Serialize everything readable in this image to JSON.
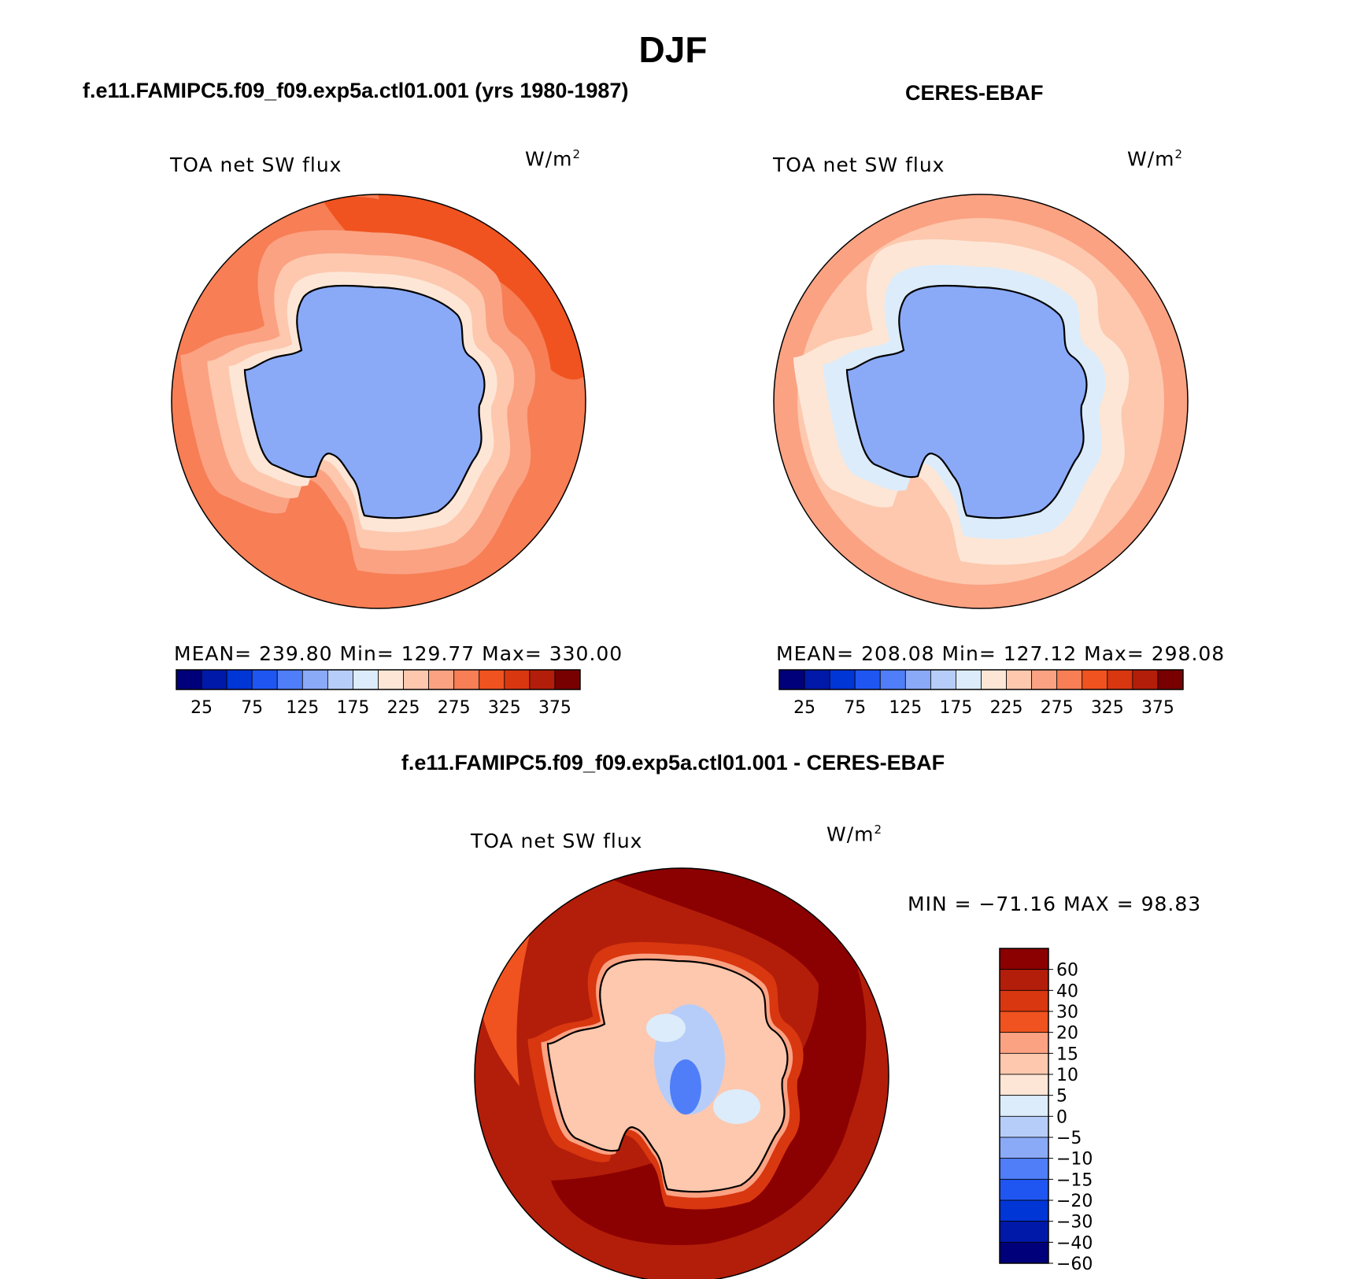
{
  "title": "DJF",
  "panels": {
    "left": {
      "title": "f.e11.FAMIPC5.f09_f09.exp5a.ctl01.001 (yrs 1980-1987)",
      "variable": "TOA net SW flux",
      "unit_base": "W/m",
      "unit_exp": "2",
      "stats": "MEAN= 239.80   Min= 129.77   Max= 330.00"
    },
    "right": {
      "title": "CERES-EBAF",
      "variable": "TOA net SW flux",
      "unit_base": "W/m",
      "unit_exp": "2",
      "stats": "MEAN= 208.08   Min= 127.12   Max= 298.08"
    },
    "bottom": {
      "title": "f.e11.FAMIPC5.f09_f09.exp5a.ctl01.001 - CERES-EBAF",
      "variable": "TOA net SW flux",
      "unit_base": "W/m",
      "unit_exp": "2",
      "stats": "MIN = −71.16 MAX =  98.83"
    }
  },
  "chart_data": [
    {
      "type": "heatmap",
      "projection": "south-polar-stereographic",
      "colorbar": {
        "orientation": "horizontal",
        "colors": [
          "#00007a",
          "#0019a8",
          "#0035d6",
          "#1f56f2",
          "#4f7ef8",
          "#8aaaf8",
          "#b7cdf9",
          "#dcecfa",
          "#fde6d6",
          "#fdc8ae",
          "#fba283",
          "#f77e55",
          "#f0531f",
          "#d83710",
          "#b31e0a",
          "#780000"
        ],
        "tick_labels": [
          "25",
          "75",
          "125",
          "175",
          "225",
          "275",
          "325",
          "375"
        ]
      }
    },
    {
      "type": "heatmap",
      "projection": "south-polar-stereographic",
      "colorbar": {
        "orientation": "horizontal",
        "colors": [
          "#00007a",
          "#0019a8",
          "#0035d6",
          "#1f56f2",
          "#4f7ef8",
          "#8aaaf8",
          "#b7cdf9",
          "#dcecfa",
          "#fde6d6",
          "#fdc8ae",
          "#fba283",
          "#f77e55",
          "#f0531f",
          "#d83710",
          "#b31e0a",
          "#780000"
        ],
        "tick_labels": [
          "25",
          "75",
          "125",
          "175",
          "225",
          "275",
          "325",
          "375"
        ]
      }
    },
    {
      "type": "heatmap",
      "projection": "south-polar-stereographic",
      "colorbar": {
        "orientation": "vertical",
        "colors": [
          "#8b0000",
          "#b31e0a",
          "#d83710",
          "#f0531f",
          "#fba283",
          "#fdc8ae",
          "#fde6d6",
          "#dcecfa",
          "#b7cdf9",
          "#8aaaf8",
          "#4f7ef8",
          "#1f56f2",
          "#0035d6",
          "#0019a8",
          "#00007a"
        ],
        "tick_labels": [
          "60",
          "40",
          "30",
          "20",
          "15",
          "10",
          "5",
          "0",
          "−5",
          "−10",
          "−15",
          "−20",
          "−30",
          "−40",
          "−60"
        ]
      }
    }
  ]
}
